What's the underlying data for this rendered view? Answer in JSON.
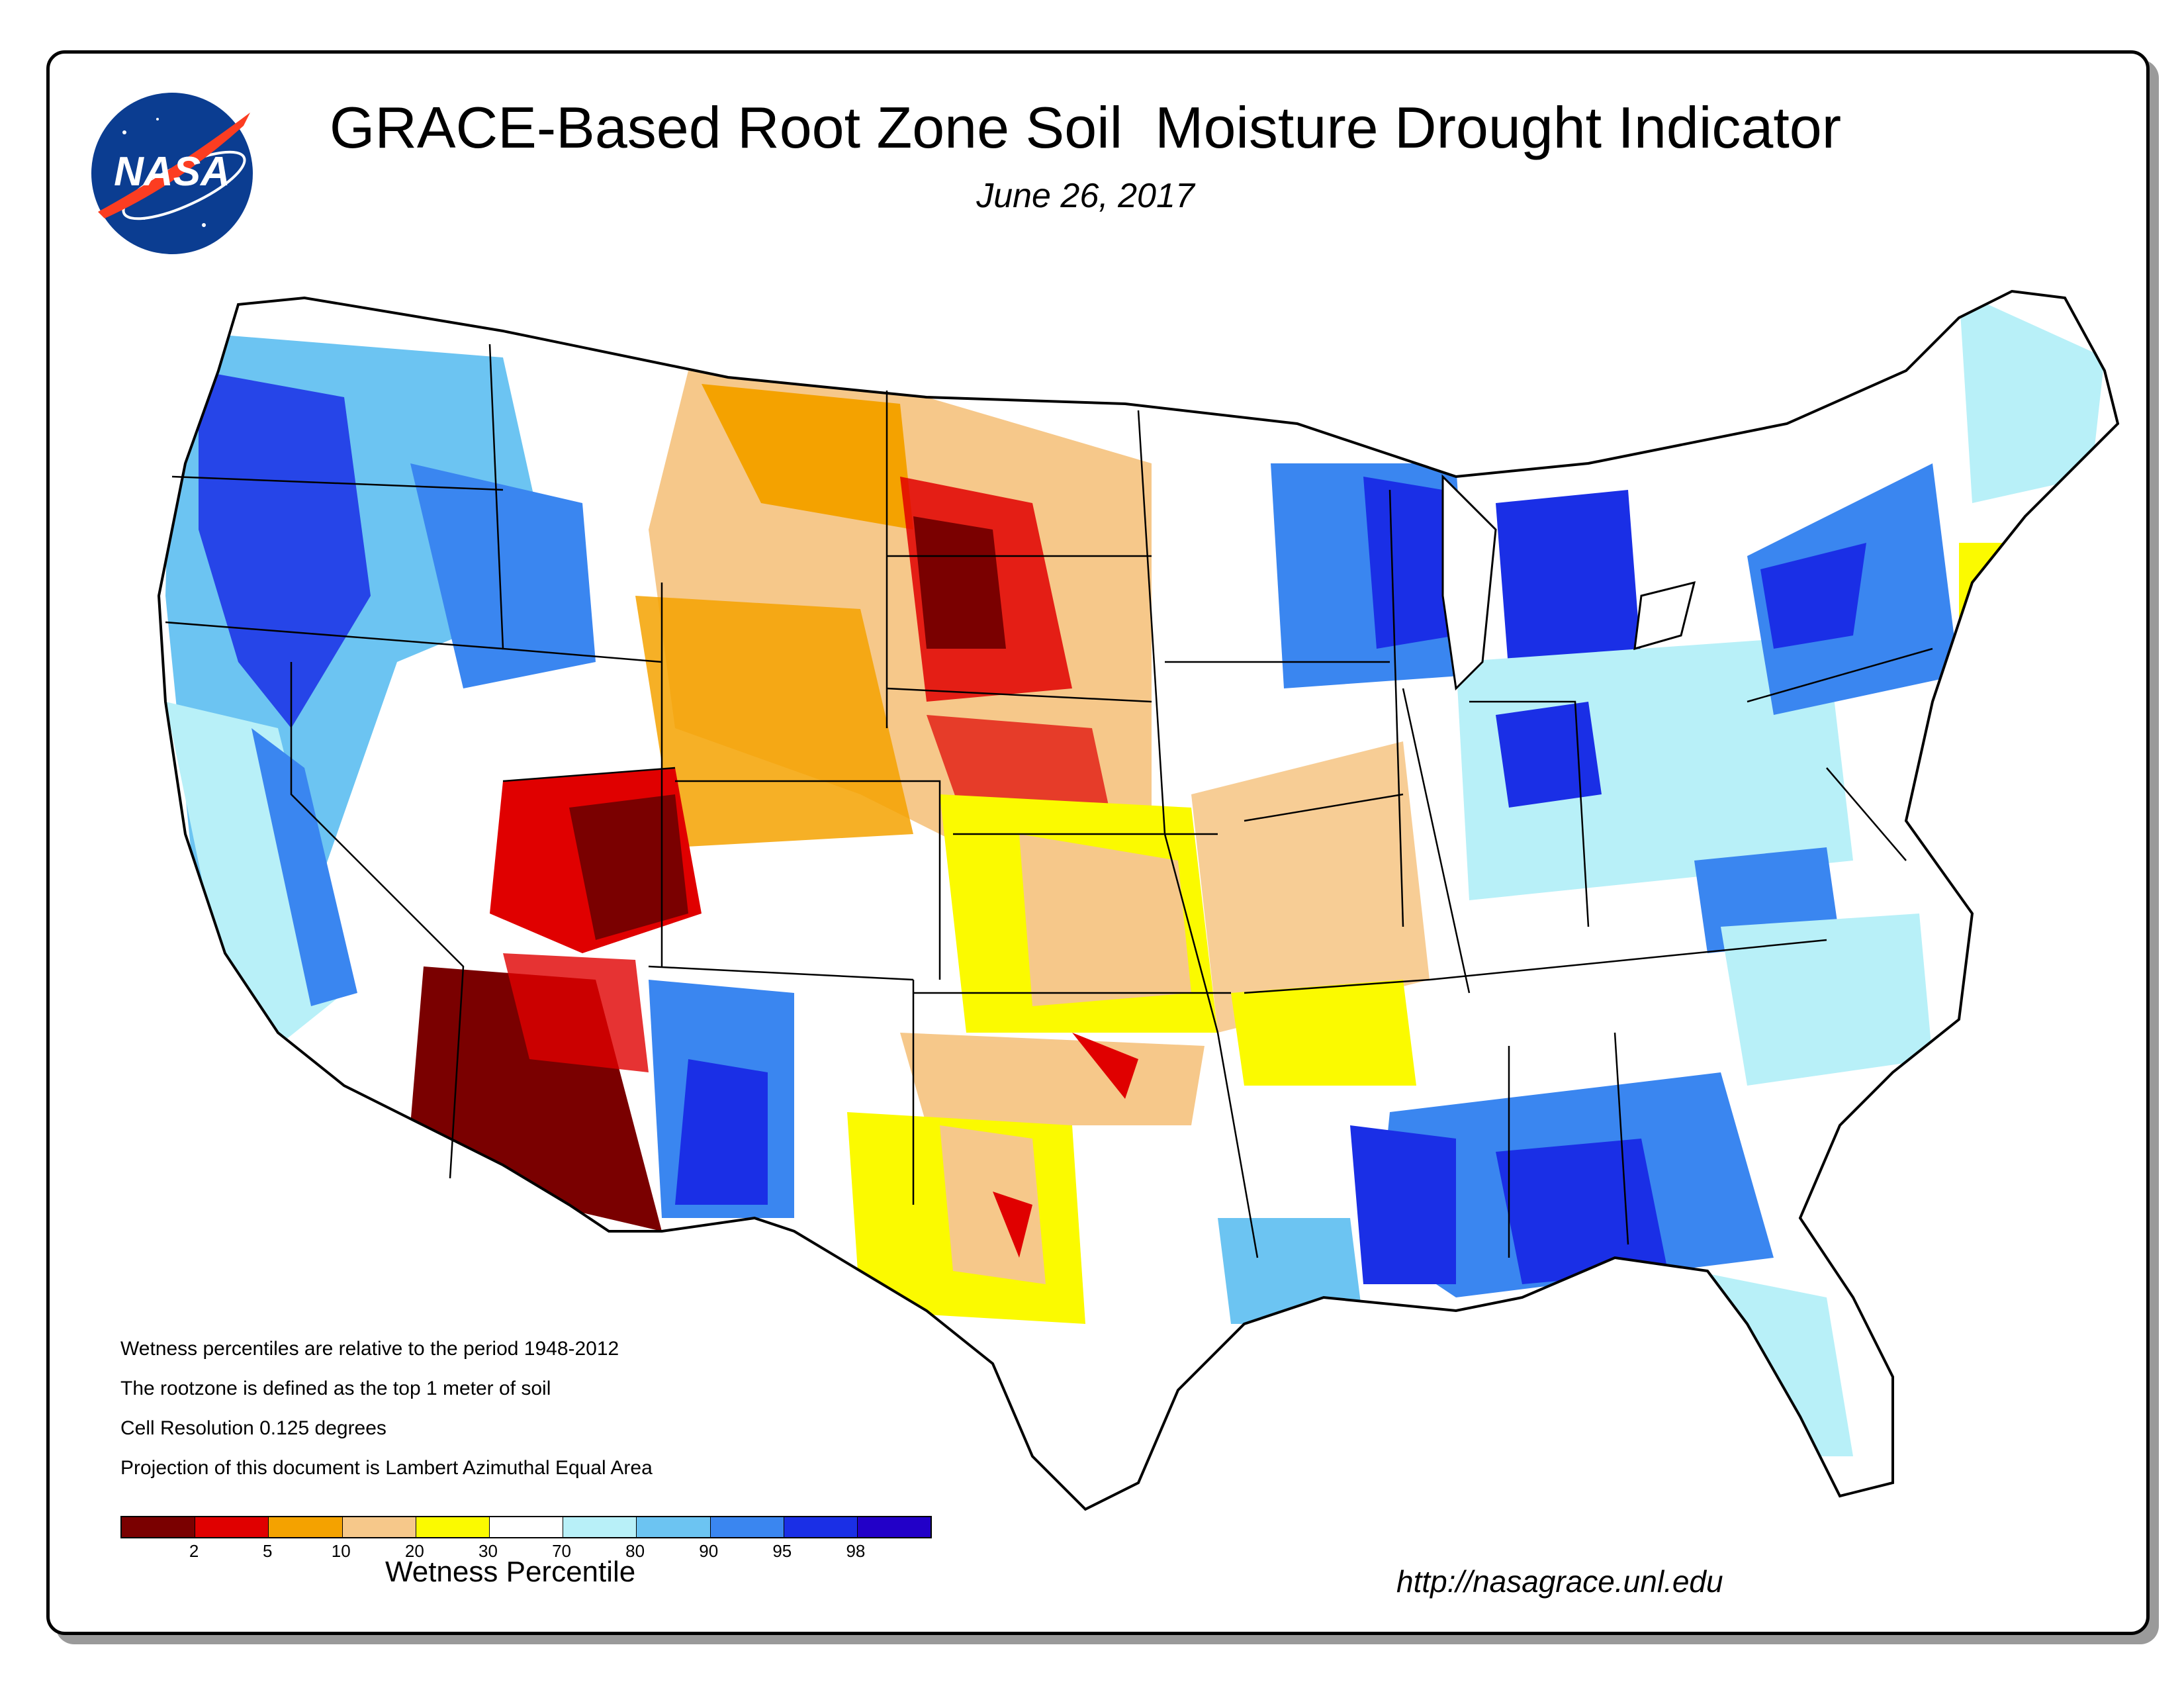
{
  "header": {
    "title": "GRACE-Based Root Zone Soil  Moisture Drought Indicator",
    "date": "June 26, 2017",
    "logo_text": "NASA"
  },
  "notes": [
    "Wetness percentiles are relative to the period 1948-2012",
    "The rootzone is defined as the top 1 meter of soil",
    "Cell Resolution 0.125 degrees",
    "Projection of this document is Lambert Azimuthal Equal Area"
  ],
  "legend": {
    "title": "Wetness Percentile",
    "ticks": [
      "2",
      "5",
      "10",
      "20",
      "30",
      "70",
      "80",
      "90",
      "95",
      "98"
    ],
    "colors": [
      "#7a0000",
      "#e00000",
      "#f4a200",
      "#f6c88a",
      "#fbfa00",
      "#ffffff",
      "#b8f0f8",
      "#6cc4f2",
      "#3a86f0",
      "#1a2fe6",
      "#2200c8"
    ]
  },
  "footer": {
    "url": "http://nasagrace.unl.edu"
  },
  "map_regions": {
    "base_color": "#ffffff",
    "wet_color": "#3a86f0",
    "very_wet_color": "#1a2fe6",
    "dry_color": "#f4a200",
    "very_dry_color": "#7a0000"
  }
}
